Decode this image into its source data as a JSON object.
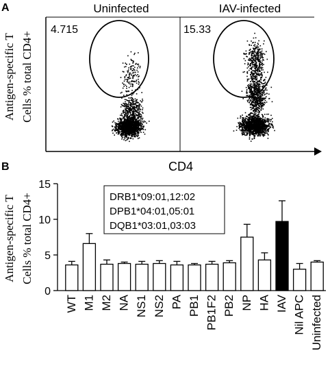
{
  "figure": {
    "panel_a_label": "A",
    "panel_b_label": "B"
  },
  "chart_data": [
    {
      "type": "scatter",
      "panel": "A",
      "ylabel_line1": "Antigen-specific T",
      "ylabel_line2": "Cells % total CD4+",
      "xlabel": "CD4",
      "facets": [
        {
          "title": "Uninfected",
          "gate_percent": "4.715"
        },
        {
          "title": "IAV-infected",
          "gate_percent": "15.33"
        }
      ],
      "grid": false
    },
    {
      "type": "bar",
      "panel": "B",
      "ylabel_line1": "Antigen-specific T",
      "ylabel_line2": "Cells % total CD4+",
      "ylim": [
        0,
        15
      ],
      "yticks": [
        "0",
        "5",
        "10",
        "15"
      ],
      "categories": [
        "WT",
        "M1",
        "M2",
        "NA",
        "NS1",
        "NS2",
        "PA",
        "PB1",
        "PB1F2",
        "PB2",
        "NP",
        "HA",
        "IAV",
        "Nil APC",
        "Uninfected"
      ],
      "values": [
        3.6,
        6.6,
        3.7,
        3.8,
        3.7,
        3.8,
        3.6,
        3.6,
        3.7,
        3.9,
        7.5,
        4.3,
        9.7,
        3.0,
        4.0
      ],
      "errors": [
        0.5,
        1.4,
        0.6,
        0.2,
        0.4,
        0.4,
        0.5,
        0.2,
        0.4,
        0.3,
        1.8,
        1.0,
        2.9,
        0.8,
        0.2
      ],
      "highlight": {
        "category": "IAV",
        "color": "#000000"
      },
      "bar_color": "#ffffff",
      "annotation": [
        "DRB1*09:01,12:02",
        "DPB1*04:01,05:01",
        "DQB1*03:01,03:03"
      ],
      "grid": false
    }
  ]
}
